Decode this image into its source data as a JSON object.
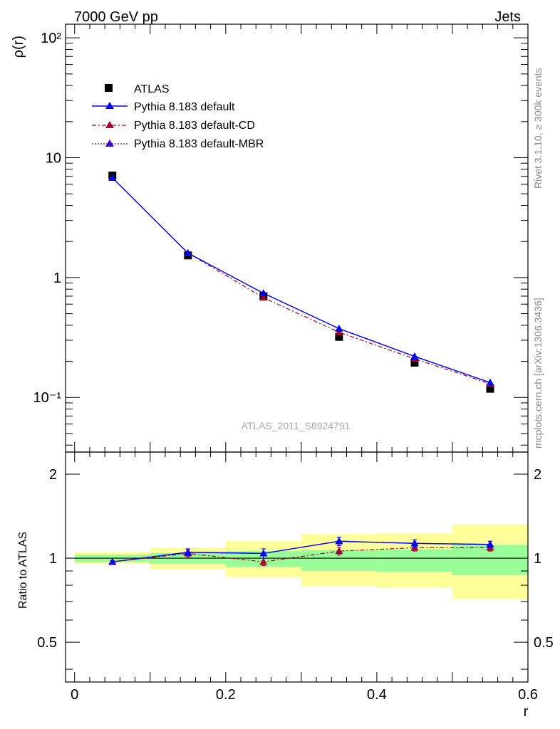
{
  "header": {
    "left": "7000 GeV pp",
    "right": "Jets"
  },
  "side": {
    "rivet": "Rivet 3.1.10, ≥ 300k events",
    "mcplots": "mcplots.cern.ch [arXiv:1306.3436]"
  },
  "colors": {
    "atlas": "#000000",
    "default": "#0000ee",
    "cd": "#a00030",
    "mbr": "#4400cc",
    "band_stat": "#99ff99",
    "band_total": "#ffff99"
  },
  "chart_data": [
    {
      "type": "scatter",
      "title": "7000 GeV pp",
      "ylabel": "ρ(r)",
      "xlabel": "r",
      "yscale": "log",
      "ylim": [
        0.035,
        130
      ],
      "xlim": [
        -0.012,
        0.6
      ],
      "watermark": "ATLAS_2011_S8924791",
      "yticks": [
        {
          "value": 100,
          "label": "10²"
        },
        {
          "value": 10,
          "label": "10"
        },
        {
          "value": 1,
          "label": "1"
        },
        {
          "value": 0.1,
          "label": "10⁻¹"
        }
      ],
      "x": [
        0.05,
        0.15,
        0.25,
        0.35,
        0.45,
        0.55
      ],
      "series": [
        {
          "name": "ATLAS",
          "style": "data",
          "values": [
            7.1,
            1.53,
            0.7,
            0.32,
            0.195,
            0.118
          ]
        },
        {
          "name": "Pythia 8.183 default",
          "style": "solid",
          "values": [
            6.8,
            1.6,
            0.74,
            0.375,
            0.22,
            0.133
          ]
        },
        {
          "name": "Pythia 8.183 default-CD",
          "style": "dashdot",
          "values": [
            6.8,
            1.6,
            0.68,
            0.35,
            0.21,
            0.13
          ]
        },
        {
          "name": "Pythia 8.183 default-MBR",
          "style": "dotted",
          "values": [
            6.8,
            1.6,
            0.74,
            0.375,
            0.22,
            0.133
          ]
        }
      ]
    },
    {
      "type": "scatter",
      "ylabel": "Ratio to ATLAS",
      "xlabel": "r",
      "yscale": "log",
      "ylim": [
        0.36,
        2.4
      ],
      "xlim": [
        -0.012,
        0.6
      ],
      "xticks": [
        {
          "value": 0,
          "label": "0"
        },
        {
          "value": 0.2,
          "label": "0.2"
        },
        {
          "value": 0.4,
          "label": "0.4"
        },
        {
          "value": 0.6,
          "label": "0.6"
        }
      ],
      "yticks": [
        {
          "value": 2,
          "label": "2"
        },
        {
          "value": 1,
          "label": "1"
        },
        {
          "value": 0.5,
          "label": "0.5"
        }
      ],
      "bins": [
        [
          0.0,
          0.1
        ],
        [
          0.1,
          0.2
        ],
        [
          0.2,
          0.3
        ],
        [
          0.3,
          0.4
        ],
        [
          0.4,
          0.5
        ],
        [
          0.5,
          0.6
        ]
      ],
      "band_stat": [
        [
          0.97,
          1.03
        ],
        [
          0.955,
          1.045
        ],
        [
          0.93,
          1.06
        ],
        [
          0.9,
          1.07
        ],
        [
          0.895,
          1.075
        ],
        [
          0.87,
          1.115
        ]
      ],
      "band_total": [
        [
          0.955,
          1.05
        ],
        [
          0.915,
          1.09
        ],
        [
          0.855,
          1.15
        ],
        [
          0.795,
          1.22
        ],
        [
          0.785,
          1.225
        ],
        [
          0.715,
          1.32
        ]
      ],
      "x": [
        0.05,
        0.15,
        0.25,
        0.35,
        0.45,
        0.55
      ],
      "series": [
        {
          "name": "Pythia 8.183 default",
          "style": "solid",
          "values": [
            0.97,
            1.05,
            1.04,
            1.15,
            1.13,
            1.12
          ],
          "err": [
            0.01,
            0.03,
            0.04,
            0.04,
            0.035,
            0.03
          ]
        },
        {
          "name": "Pythia 8.183 default-CD",
          "style": "dashdot",
          "values": [
            0.97,
            1.04,
            0.97,
            1.06,
            1.09,
            1.09
          ],
          "err": [
            0.01,
            0.03,
            0.03,
            0.035,
            0.03,
            0.03
          ]
        },
        {
          "name": "Pythia 8.183 default-MBR",
          "style": "dotted",
          "values": [
            0.97,
            1.05,
            1.04,
            1.15,
            1.13,
            1.12
          ],
          "err": [
            0.01,
            0.03,
            0.04,
            0.04,
            0.035,
            0.03
          ]
        }
      ]
    }
  ]
}
